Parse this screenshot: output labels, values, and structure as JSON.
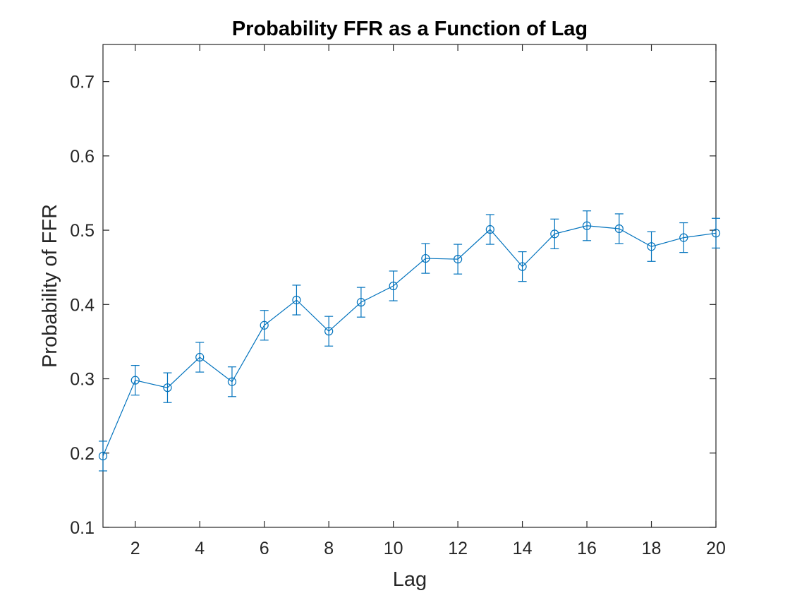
{
  "chart_data": {
    "type": "line",
    "title": "Probability FFR as a Function of Lag",
    "xlabel": "Lag",
    "ylabel": "Probability of FFR",
    "xlim": [
      1,
      20
    ],
    "ylim": [
      0.1,
      0.75
    ],
    "xticks": [
      2,
      4,
      6,
      8,
      10,
      12,
      14,
      16,
      18,
      20
    ],
    "yticks": [
      0.1,
      0.2,
      0.3,
      0.4,
      0.5,
      0.6,
      0.7
    ],
    "xtick_labels": [
      "2",
      "4",
      "6",
      "8",
      "10",
      "12",
      "14",
      "16",
      "18",
      "20"
    ],
    "ytick_labels": [
      "0.1",
      "0.2",
      "0.3",
      "0.4",
      "0.5",
      "0.6",
      "0.7"
    ],
    "grid": false,
    "marker": "circle",
    "series_color": "#0072BD",
    "series": [
      {
        "x": [
          1,
          2,
          3,
          4,
          5,
          6,
          7,
          8,
          9,
          10,
          11,
          12,
          13,
          14,
          15,
          16,
          17,
          18,
          19,
          20
        ],
        "values": [
          0.196,
          0.298,
          0.288,
          0.329,
          0.296,
          0.372,
          0.406,
          0.364,
          0.403,
          0.425,
          0.462,
          0.461,
          0.501,
          0.451,
          0.495,
          0.506,
          0.502,
          0.478,
          0.49,
          0.496
        ],
        "error": [
          0.02,
          0.02,
          0.02,
          0.02,
          0.02,
          0.02,
          0.02,
          0.02,
          0.02,
          0.02,
          0.02,
          0.02,
          0.02,
          0.02,
          0.02,
          0.02,
          0.02,
          0.02,
          0.02,
          0.02
        ]
      }
    ]
  }
}
